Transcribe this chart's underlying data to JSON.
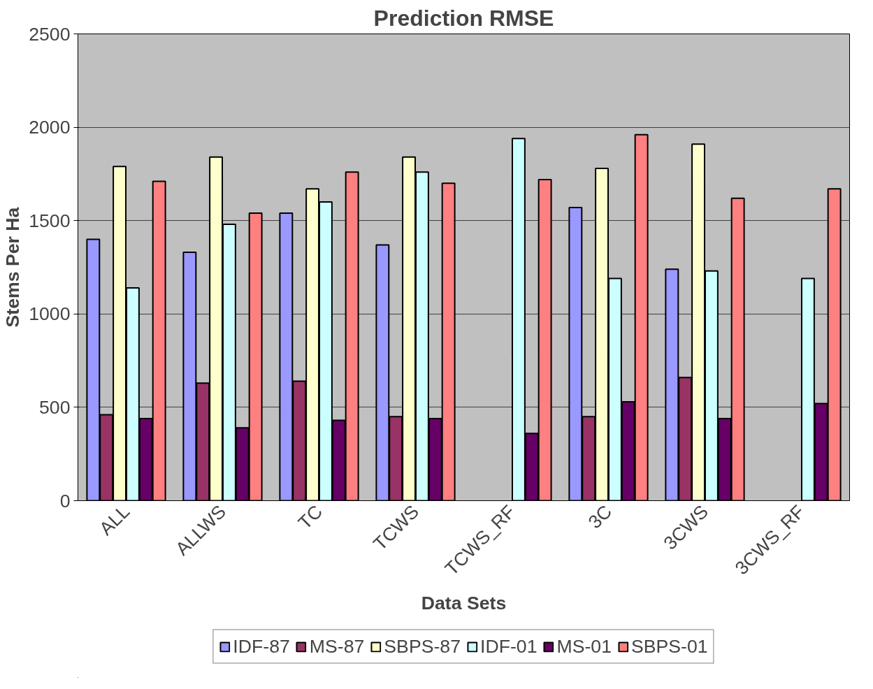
{
  "chart_data": {
    "type": "bar",
    "title": "Prediction RMSE",
    "xlabel": "Data Sets",
    "ylabel": "Stems Per Ha",
    "categories": [
      "ALL",
      "ALLWS",
      "TC",
      "TCWS",
      "TCWS_RF",
      "3C",
      "3CWS",
      "3CWS_RF"
    ],
    "series": [
      {
        "name": "IDF-87",
        "color": "#9999ff",
        "values": [
          1400,
          1330,
          1540,
          1370,
          null,
          1570,
          1240,
          null
        ]
      },
      {
        "name": "MS-87",
        "color": "#993366",
        "values": [
          460,
          630,
          640,
          450,
          null,
          450,
          660,
          null
        ]
      },
      {
        "name": "SBPS-87",
        "color": "#ffffcc",
        "values": [
          1790,
          1840,
          1670,
          1840,
          null,
          1780,
          1910,
          null
        ]
      },
      {
        "name": "IDF-01",
        "color": "#ccffff",
        "values": [
          1140,
          1480,
          1600,
          1760,
          1940,
          1190,
          1230,
          1190
        ]
      },
      {
        "name": "MS-01",
        "color": "#660066",
        "values": [
          440,
          390,
          430,
          440,
          360,
          530,
          440,
          520
        ]
      },
      {
        "name": "SBPS-01",
        "color": "#ff8080",
        "values": [
          1710,
          1540,
          1760,
          1700,
          1720,
          1960,
          1620,
          1670
        ]
      }
    ],
    "ylim": [
      0,
      2500
    ],
    "yticks": [
      0,
      500,
      1000,
      1500,
      2000,
      2500
    ],
    "grid": "y",
    "legend": "bottom"
  }
}
